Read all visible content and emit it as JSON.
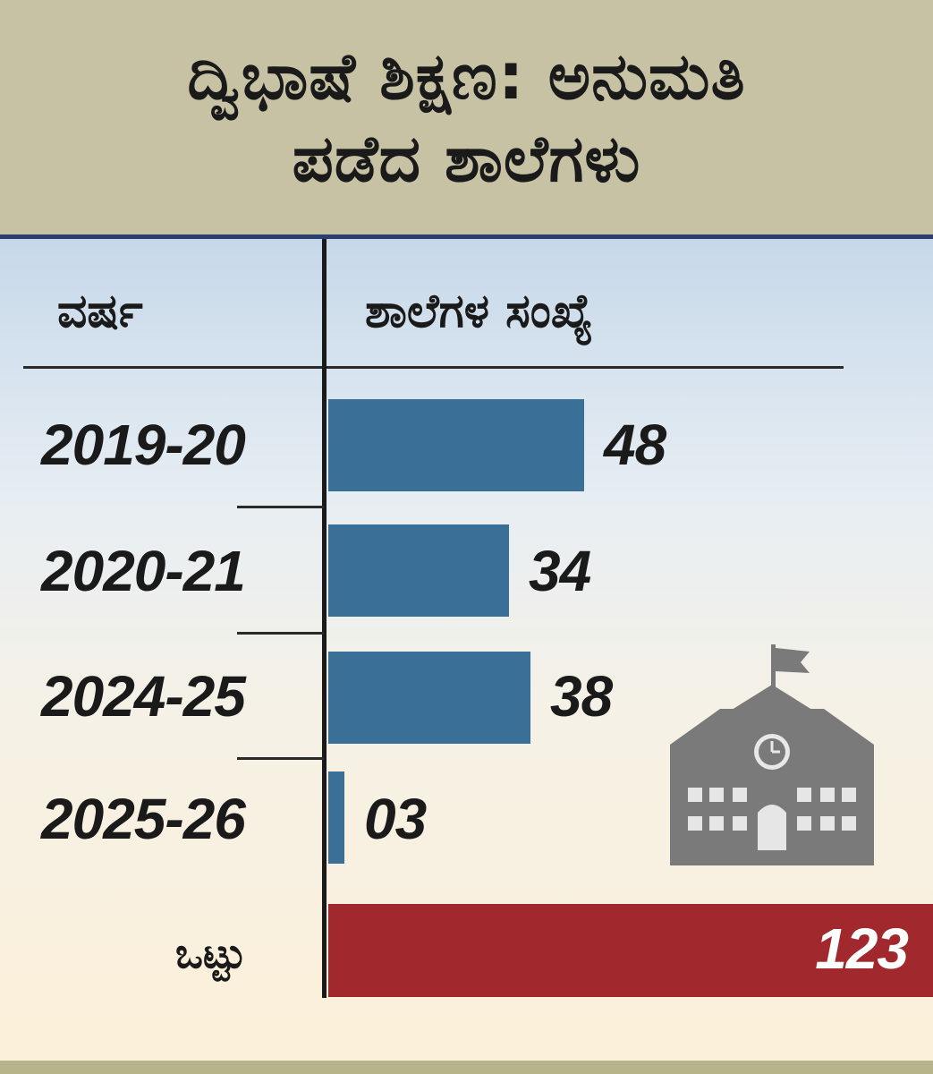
{
  "header": {
    "title_line1": "ದ್ವಿಭಾಷೆ ಶಿಕ್ಷಣ: ಅನುಮತಿ",
    "title_line2": "ಪಡೆದ ಶಾಲೆಗಳು"
  },
  "table": {
    "col_year": "ವರ್ಷ",
    "col_count": "ಶಾಲೆಗಳ ಸಂಖ್ಯೆ",
    "total_label": "ಒಟ್ಟು",
    "total_value": "123"
  },
  "colors": {
    "bar": "#3a6f97",
    "total_bar": "#a1292e",
    "header_bg": "#c8c2a5",
    "icon": "#7a7a7a"
  },
  "icons": {
    "school": "school-building-icon"
  },
  "chart_data": {
    "type": "bar",
    "orientation": "horizontal",
    "title": "ದ್ವಿಭಾಷೆ ಶಿಕ್ಷಣ: ಅನುಮತಿ ಪಡೆದ ಶಾಲೆಗಳು",
    "xlabel": "ಶಾಲೆಗಳ ಸಂಖ್ಯೆ",
    "ylabel": "ವರ್ಷ",
    "categories": [
      "2019-20",
      "2020-21",
      "2024-25",
      "2025-26"
    ],
    "values": [
      48,
      34,
      38,
      3
    ],
    "value_labels": [
      "48",
      "34",
      "38",
      "03"
    ],
    "total": 123,
    "grid": false
  }
}
